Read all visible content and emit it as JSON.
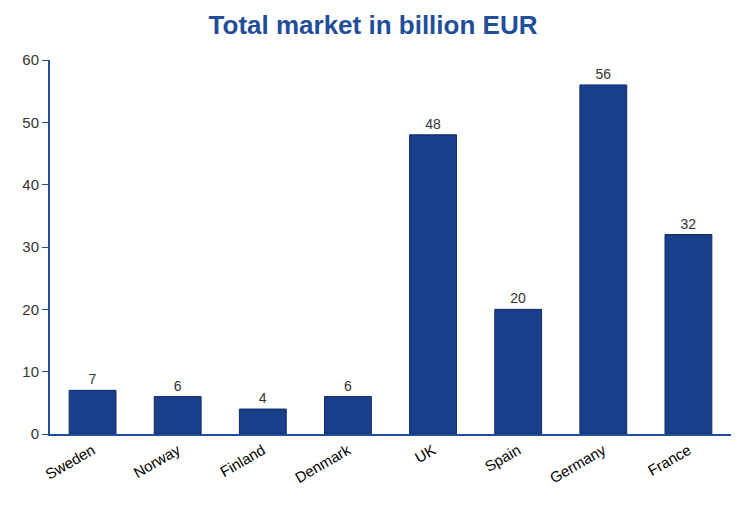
{
  "chart_data": {
    "type": "bar",
    "title": "Total market in billion EUR",
    "categories": [
      "Sweden",
      "Norway",
      "Finland",
      "Denmark",
      "UK",
      "Spain",
      "Germany",
      "France"
    ],
    "values": [
      7,
      6,
      4,
      6,
      48,
      20,
      56,
      32
    ],
    "color": "#1a3f8a",
    "ylim": [
      0,
      60
    ],
    "yticks": [
      0,
      10,
      20,
      30,
      40,
      50,
      60
    ],
    "grid": false,
    "data_labels": true
  }
}
